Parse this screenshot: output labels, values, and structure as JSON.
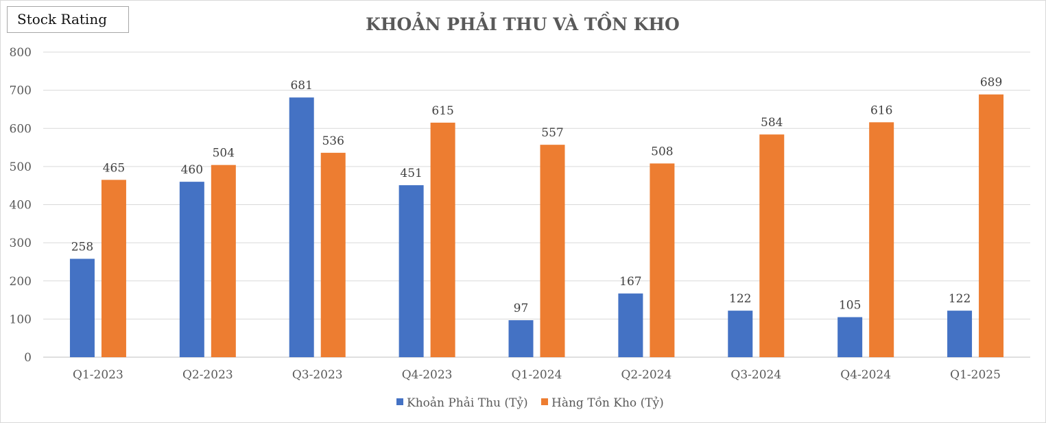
{
  "badge": {
    "label": "Stock Rating"
  },
  "chart_data": {
    "type": "bar",
    "title": "KHOẢN PHẢI THU VÀ TỒN KHO",
    "categories": [
      "Q1-2023",
      "Q2-2023",
      "Q3-2023",
      "Q4-2023",
      "Q1-2024",
      "Q2-2024",
      "Q3-2024",
      "Q4-2024",
      "Q1-2025"
    ],
    "series": [
      {
        "name": "Khoản Phải Thu (Tỷ)",
        "color": "#4472C4",
        "values": [
          258,
          460,
          681,
          451,
          97,
          167,
          122,
          105,
          122
        ]
      },
      {
        "name": "Hàng Tồn Kho (Tỷ)",
        "color": "#ED7D31",
        "values": [
          465,
          504,
          536,
          615,
          557,
          508,
          584,
          616,
          689
        ]
      }
    ],
    "ylim": [
      0,
      800
    ],
    "yticks": [
      0,
      100,
      200,
      300,
      400,
      500,
      600,
      700,
      800
    ],
    "grid": true,
    "legend": "bottom",
    "xlabel": "",
    "ylabel": ""
  }
}
